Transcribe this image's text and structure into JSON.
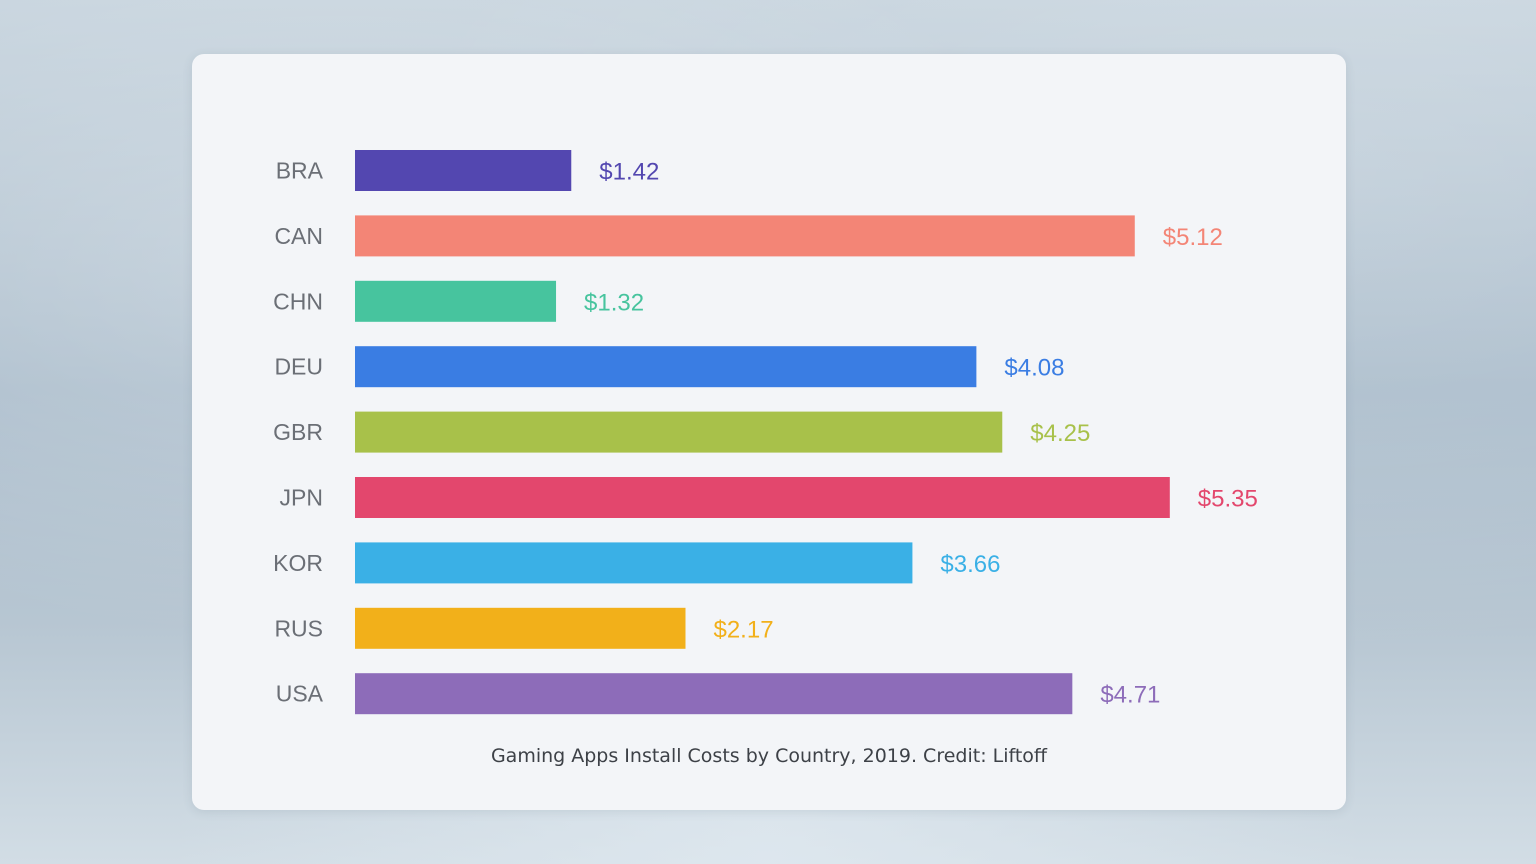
{
  "chart_data": {
    "type": "bar",
    "orientation": "horizontal",
    "categories": [
      "BRA",
      "CAN",
      "CHN",
      "DEU",
      "GBR",
      "JPN",
      "KOR",
      "RUS",
      "USA"
    ],
    "values": [
      1.42,
      5.12,
      1.32,
      4.08,
      4.25,
      5.35,
      3.66,
      2.17,
      4.71
    ],
    "value_labels": [
      "$1.42",
      "$5.12",
      "$1.32",
      "$4.08",
      "$4.25",
      "$5.35",
      "$3.66",
      "$2.17",
      "$4.71"
    ],
    "colors": [
      "#5347b0",
      "#f38576",
      "#47c49e",
      "#3a7de3",
      "#a8c14a",
      "#e3476d",
      "#3ab0e6",
      "#f2b01a",
      "#8d6cb9"
    ],
    "caption": "Gaming Apps Install Costs by Country, 2019. Credit: Liftoff",
    "grid": false,
    "legend": "none"
  }
}
